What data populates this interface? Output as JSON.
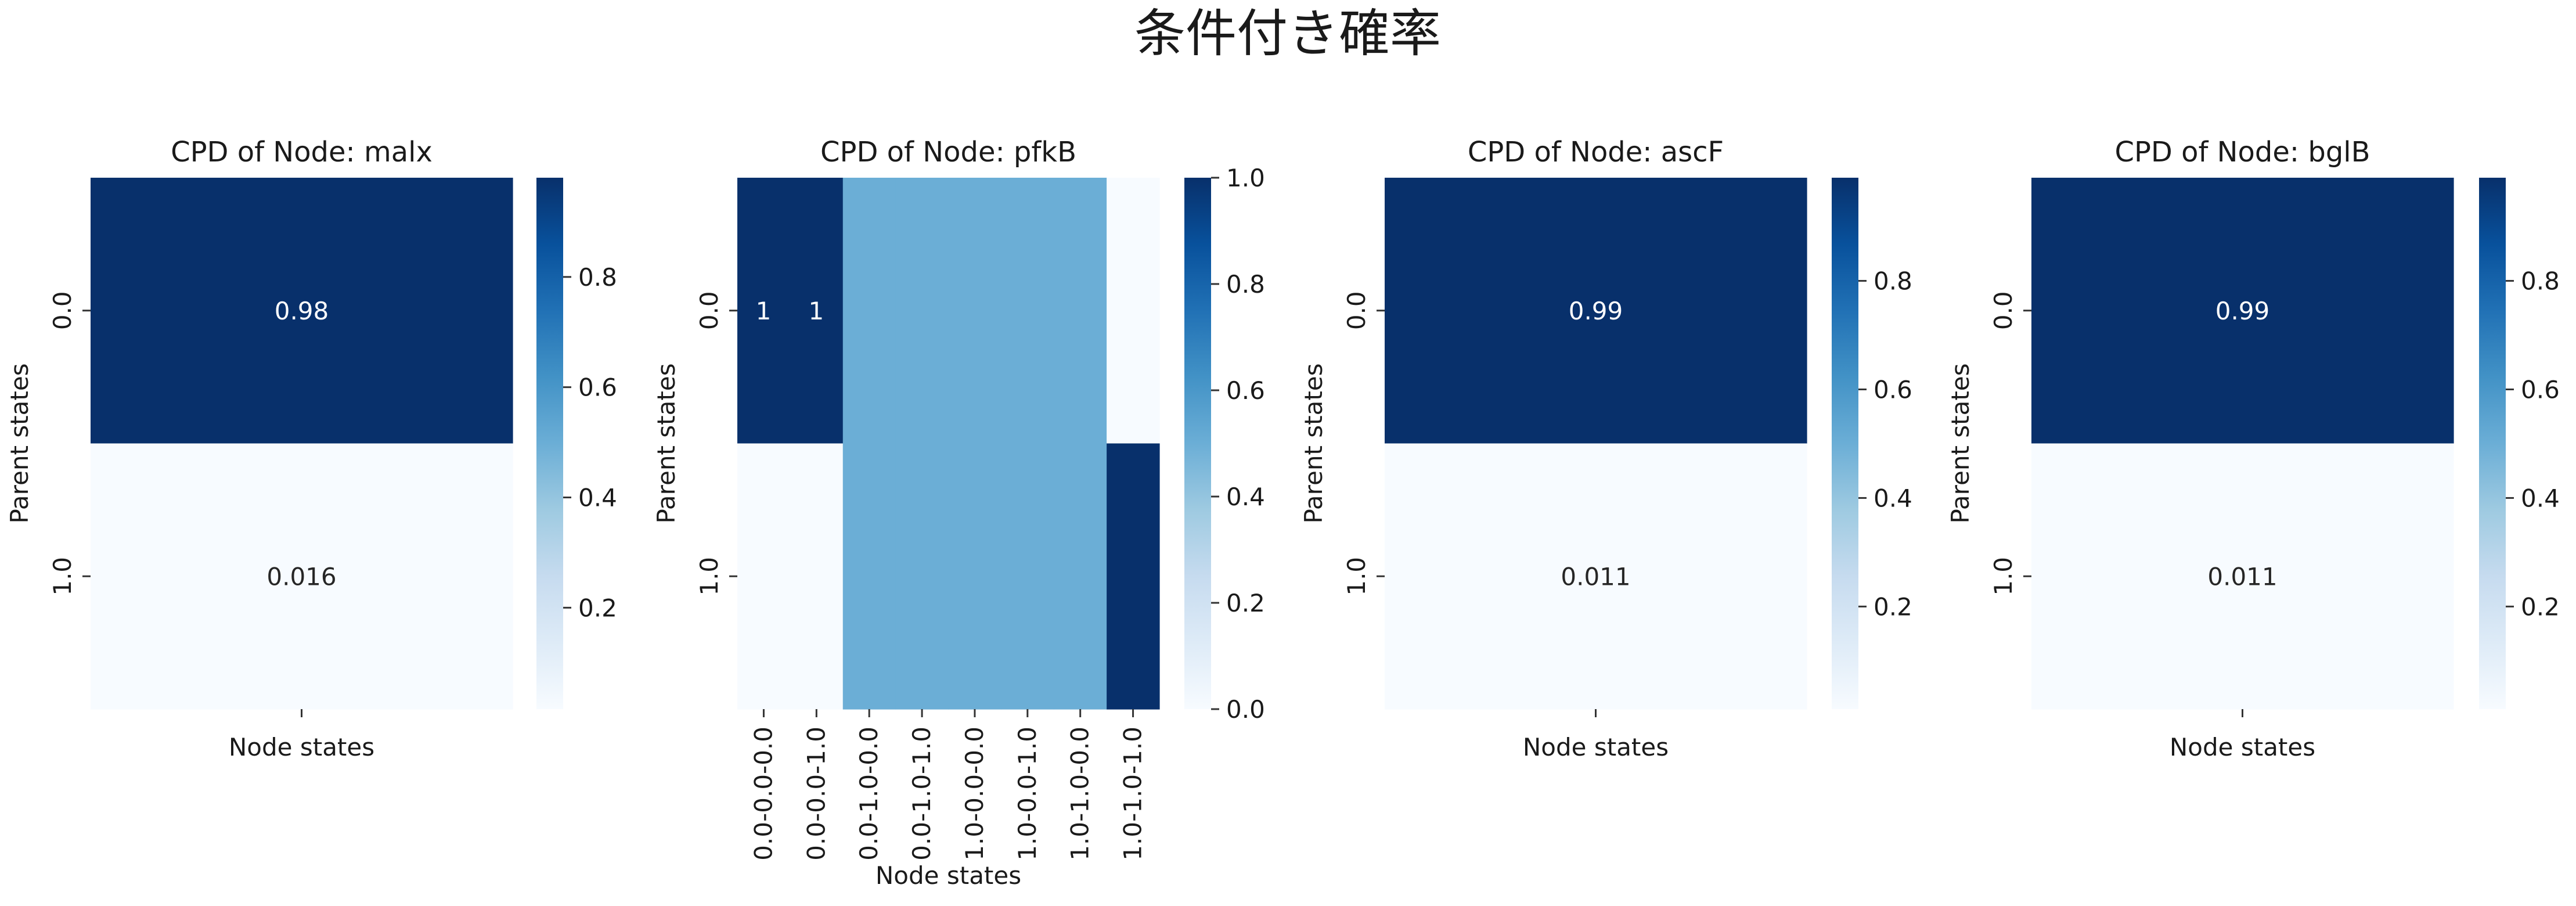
{
  "figure": {
    "title": "条件付き確率"
  },
  "chart_data": [
    {
      "type": "heatmap",
      "title": "CPD of Node: malx",
      "xlabel": "Node states",
      "ylabel": "Parent states",
      "columns": [
        ""
      ],
      "rows": [
        "0.0",
        "1.0"
      ],
      "values": [
        [
          0.98
        ],
        [
          0.016
        ]
      ],
      "annotations": [
        [
          "0.98"
        ],
        [
          "0.016"
        ]
      ],
      "colorbar": {
        "vmin": 0.016,
        "vmax": 0.98,
        "ticks": [
          0.2,
          0.4,
          0.6,
          0.8
        ]
      },
      "cmap": "Blues"
    },
    {
      "type": "heatmap",
      "title": "CPD of Node: pfkB",
      "xlabel": "Node states",
      "ylabel": "Parent states",
      "columns": [
        "0.0-0.0-0.0",
        "0.0-0.0-1.0",
        "0.0-1.0-0.0",
        "0.0-1.0-1.0",
        "1.0-0.0-0.0",
        "1.0-0.0-1.0",
        "1.0-1.0-0.0",
        "1.0-1.0-1.0"
      ],
      "rows": [
        "0.0",
        "1.0"
      ],
      "values": [
        [
          1,
          1,
          0.5,
          0.5,
          0.5,
          0.5,
          0.5,
          0
        ],
        [
          0,
          0,
          0.5,
          0.5,
          0.5,
          0.5,
          0.5,
          1
        ]
      ],
      "annotations": [
        [
          "1",
          "1",
          "",
          "",
          "",
          "",
          "",
          ""
        ],
        [
          "",
          "",
          "",
          "",
          "",
          "",
          "",
          ""
        ]
      ],
      "colorbar": {
        "vmin": 0.0,
        "vmax": 1.0,
        "ticks": [
          0.0,
          0.2,
          0.4,
          0.6,
          0.8,
          1.0
        ]
      },
      "cmap": "Blues"
    },
    {
      "type": "heatmap",
      "title": "CPD of Node: ascF",
      "xlabel": "Node states",
      "ylabel": "Parent states",
      "columns": [
        ""
      ],
      "rows": [
        "0.0",
        "1.0"
      ],
      "values": [
        [
          0.99
        ],
        [
          0.011
        ]
      ],
      "annotations": [
        [
          "0.99"
        ],
        [
          "0.011"
        ]
      ],
      "colorbar": {
        "vmin": 0.011,
        "vmax": 0.99,
        "ticks": [
          0.2,
          0.4,
          0.6,
          0.8
        ]
      },
      "cmap": "Blues"
    },
    {
      "type": "heatmap",
      "title": "CPD of Node: bglB",
      "xlabel": "Node states",
      "ylabel": "Parent states",
      "columns": [
        ""
      ],
      "rows": [
        "0.0",
        "1.0"
      ],
      "values": [
        [
          0.99
        ],
        [
          0.011
        ]
      ],
      "annotations": [
        [
          "0.99"
        ],
        [
          "0.011"
        ]
      ],
      "colorbar": {
        "vmin": 0.011,
        "vmax": 0.99,
        "ticks": [
          0.2,
          0.4,
          0.6,
          0.8
        ]
      },
      "cmap": "Blues"
    }
  ]
}
